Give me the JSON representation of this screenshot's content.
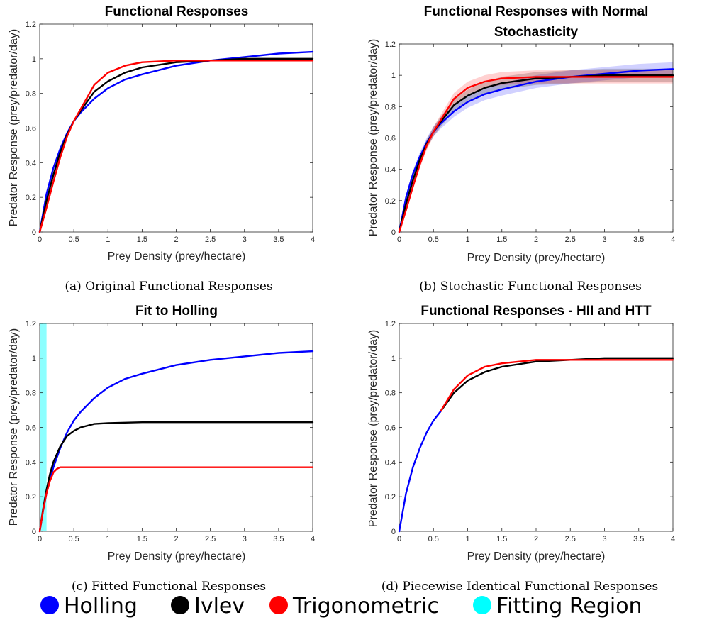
{
  "chart_data": [
    {
      "id": "a",
      "type": "line",
      "title": "Functional Responses",
      "title2": "",
      "xlabel": "Prey Density (prey/hectare)",
      "ylabel": "Predator Response (prey/predator/day)",
      "caption": "(a) Original Functional Responses",
      "xlim": [
        0,
        4
      ],
      "ylim": [
        0,
        1.2
      ],
      "xticks": [
        "0",
        "0.5",
        "1",
        "1.5",
        "2",
        "2.5",
        "3",
        "3.5",
        "4"
      ],
      "yticks": [
        "0",
        "0.2",
        "0.4",
        "0.6",
        "0.8",
        "1",
        "1.2"
      ],
      "band": false,
      "fitting_region": null,
      "series": [
        {
          "key": "holling",
          "color": "#0000ff",
          "x": [
            0,
            0.1,
            0.2,
            0.3,
            0.4,
            0.5,
            0.6,
            0.8,
            1.0,
            1.25,
            1.5,
            2.0,
            2.5,
            3.0,
            3.5,
            4.0
          ],
          "y": [
            0,
            0.22,
            0.37,
            0.48,
            0.57,
            0.64,
            0.69,
            0.77,
            0.83,
            0.88,
            0.91,
            0.96,
            0.99,
            1.01,
            1.03,
            1.04
          ]
        },
        {
          "key": "ivlev",
          "color": "#000000",
          "x": [
            0,
            0.1,
            0.2,
            0.3,
            0.4,
            0.5,
            0.6,
            0.8,
            1.0,
            1.25,
            1.5,
            2.0,
            2.5,
            3.0,
            3.5,
            4.0
          ],
          "y": [
            0,
            0.18,
            0.33,
            0.46,
            0.56,
            0.64,
            0.7,
            0.81,
            0.87,
            0.92,
            0.95,
            0.98,
            0.99,
            1.0,
            1.0,
            1.0
          ]
        },
        {
          "key": "trig",
          "color": "#ff0000",
          "x": [
            0,
            0.1,
            0.2,
            0.3,
            0.4,
            0.5,
            0.6,
            0.8,
            1.0,
            1.25,
            1.5,
            2.0,
            2.5,
            3.0,
            3.5,
            4.0
          ],
          "y": [
            0,
            0.14,
            0.29,
            0.43,
            0.55,
            0.64,
            0.71,
            0.85,
            0.92,
            0.96,
            0.98,
            0.99,
            0.99,
            0.99,
            0.99,
            0.99
          ]
        }
      ]
    },
    {
      "id": "b",
      "type": "line",
      "title": "Functional Responses with Normal",
      "title2": "Stochasticity",
      "xlabel": "Prey Density (prey/hectare)",
      "ylabel": "Predator Response (prey/predator/day)",
      "caption": "(b) Stochastic Functional Responses",
      "xlim": [
        0,
        4
      ],
      "ylim": [
        0,
        1.2
      ],
      "xticks": [
        "0",
        "0.5",
        "1",
        "1.5",
        "2",
        "2.5",
        "3",
        "3.5",
        "4"
      ],
      "yticks": [
        "0",
        "0.2",
        "0.4",
        "0.6",
        "0.8",
        "1",
        "1.2"
      ],
      "band": true,
      "fitting_region": null,
      "series": [
        {
          "key": "holling",
          "color": "#0000ff",
          "x": [
            0,
            0.1,
            0.2,
            0.3,
            0.4,
            0.5,
            0.6,
            0.8,
            1.0,
            1.25,
            1.5,
            2.0,
            2.5,
            3.0,
            3.5,
            4.0
          ],
          "y": [
            0,
            0.22,
            0.37,
            0.48,
            0.57,
            0.64,
            0.69,
            0.77,
            0.83,
            0.88,
            0.91,
            0.96,
            0.99,
            1.01,
            1.03,
            1.04
          ]
        },
        {
          "key": "ivlev",
          "color": "#000000",
          "x": [
            0,
            0.1,
            0.2,
            0.3,
            0.4,
            0.5,
            0.6,
            0.8,
            1.0,
            1.25,
            1.5,
            2.0,
            2.5,
            3.0,
            3.5,
            4.0
          ],
          "y": [
            0,
            0.18,
            0.33,
            0.46,
            0.56,
            0.64,
            0.7,
            0.81,
            0.87,
            0.92,
            0.95,
            0.98,
            0.99,
            1.0,
            1.0,
            1.0
          ]
        },
        {
          "key": "trig",
          "color": "#ff0000",
          "x": [
            0,
            0.1,
            0.2,
            0.3,
            0.4,
            0.5,
            0.6,
            0.8,
            1.0,
            1.25,
            1.5,
            2.0,
            2.5,
            3.0,
            3.5,
            4.0
          ],
          "y": [
            0,
            0.14,
            0.29,
            0.43,
            0.55,
            0.64,
            0.71,
            0.85,
            0.92,
            0.96,
            0.98,
            0.99,
            0.99,
            0.99,
            0.99,
            0.99
          ]
        }
      ]
    },
    {
      "id": "c",
      "type": "line",
      "title": "Fit to Holling",
      "title2": "",
      "xlabel": "Prey Density (prey/hectare)",
      "ylabel": "Predator Response (prey/predator/day)",
      "caption": "(c) Fitted Functional Responses",
      "xlim": [
        0,
        4
      ],
      "ylim": [
        0,
        1.2
      ],
      "xticks": [
        "0",
        "0.5",
        "1",
        "1.5",
        "2",
        "2.5",
        "3",
        "3.5",
        "4"
      ],
      "yticks": [
        "0",
        "0.2",
        "0.4",
        "0.6",
        "0.8",
        "1",
        "1.2"
      ],
      "band": false,
      "fitting_region": [
        0,
        0.1
      ],
      "series": [
        {
          "key": "holling",
          "color": "#0000ff",
          "x": [
            0,
            0.05,
            0.1,
            0.2,
            0.3,
            0.4,
            0.5,
            0.6,
            0.8,
            1.0,
            1.25,
            1.5,
            2.0,
            2.5,
            3.0,
            3.5,
            4.0
          ],
          "y": [
            0,
            0.12,
            0.22,
            0.37,
            0.48,
            0.57,
            0.64,
            0.69,
            0.77,
            0.83,
            0.88,
            0.91,
            0.96,
            0.99,
            1.01,
            1.03,
            1.04
          ]
        },
        {
          "key": "ivlev",
          "color": "#000000",
          "x": [
            0,
            0.05,
            0.1,
            0.15,
            0.2,
            0.3,
            0.4,
            0.5,
            0.6,
            0.8,
            1.0,
            1.5,
            2.0,
            4.0
          ],
          "y": [
            0,
            0.13,
            0.24,
            0.33,
            0.4,
            0.49,
            0.55,
            0.58,
            0.6,
            0.62,
            0.625,
            0.63,
            0.63,
            0.63
          ]
        },
        {
          "key": "trig",
          "color": "#ff0000",
          "x": [
            0,
            0.05,
            0.1,
            0.15,
            0.2,
            0.25,
            0.3,
            0.4,
            0.5,
            1.0,
            2.0,
            4.0
          ],
          "y": [
            0,
            0.12,
            0.22,
            0.29,
            0.34,
            0.36,
            0.37,
            0.37,
            0.37,
            0.37,
            0.37,
            0.37
          ]
        }
      ]
    },
    {
      "id": "d",
      "type": "line",
      "title": "Functional Responses - HII and HTT",
      "title2": "",
      "xlabel": "Prey Density (prey/hectare)",
      "ylabel": "Predator Response (prey/predator/day)",
      "caption": "(d) Piecewise Identical Functional Responses",
      "xlim": [
        0,
        4
      ],
      "ylim": [
        0,
        1.2
      ],
      "xticks": [
        "0",
        "0.5",
        "1",
        "1.5",
        "2",
        "2.5",
        "3",
        "3.5",
        "4"
      ],
      "yticks": [
        "0",
        "0.2",
        "0.4",
        "0.6",
        "0.8",
        "1",
        "1.2"
      ],
      "band": false,
      "fitting_region": null,
      "series": [
        {
          "key": "ivlev",
          "color": "#000000",
          "x": [
            0.6,
            0.8,
            1.0,
            1.25,
            1.5,
            2.0,
            2.5,
            3.0,
            3.5,
            4.0
          ],
          "y": [
            0.69,
            0.8,
            0.87,
            0.92,
            0.95,
            0.98,
            0.99,
            1.0,
            1.0,
            1.0
          ]
        },
        {
          "key": "trig",
          "color": "#ff0000",
          "x": [
            0.6,
            0.8,
            1.0,
            1.25,
            1.5,
            2.0,
            2.5,
            3.0,
            3.5,
            4.0
          ],
          "y": [
            0.69,
            0.82,
            0.9,
            0.95,
            0.97,
            0.99,
            0.99,
            0.99,
            0.99,
            0.99
          ]
        },
        {
          "key": "holling",
          "color": "#0000ff",
          "x": [
            0,
            0.1,
            0.2,
            0.3,
            0.4,
            0.5,
            0.6
          ],
          "y": [
            0,
            0.22,
            0.37,
            0.48,
            0.57,
            0.64,
            0.69
          ]
        }
      ]
    }
  ],
  "legend": [
    {
      "label": "Holling",
      "color": "#0000ff"
    },
    {
      "label": "Ivlev",
      "color": "#000000"
    },
    {
      "label": "Trigonometric",
      "color": "#ff0000"
    },
    {
      "label": "Fitting Region",
      "color": "#00ffff"
    }
  ]
}
